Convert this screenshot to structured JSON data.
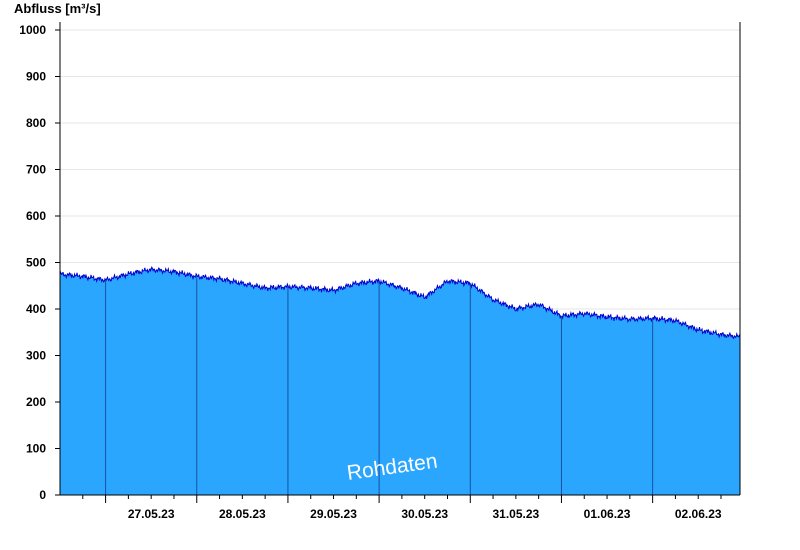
{
  "chart_data": {
    "type": "area",
    "title": "",
    "ylabel": "Abfluss [m³/s]",
    "xlabel": "",
    "ylim": [
      0,
      1000
    ],
    "xlim": [
      "2023-05-26 12:00",
      "2023-06-02 23:00"
    ],
    "yticks": [
      0,
      100,
      200,
      300,
      400,
      500,
      600,
      700,
      800,
      900,
      1000
    ],
    "xtick_labels": [
      "27.05.23",
      "28.05.23",
      "29.05.23",
      "30.05.23",
      "31.05.23",
      "01.06.23",
      "02.06.23"
    ],
    "grid": true,
    "watermark": "Rohdaten",
    "fill_color": "#2aa6ff",
    "line_color": "#0000cc",
    "series": [
      {
        "x": [
          "2023-05-26 12:00",
          "2023-05-26 18:00",
          "2023-05-27 00:00",
          "2023-05-27 06:00",
          "2023-05-27 12:00",
          "2023-05-27 18:00",
          "2023-05-28 00:00",
          "2023-05-28 06:00",
          "2023-05-28 12:00",
          "2023-05-28 18:00",
          "2023-05-29 00:00",
          "2023-05-29 06:00",
          "2023-05-29 12:00",
          "2023-05-29 18:00",
          "2023-05-30 00:00",
          "2023-05-30 06:00",
          "2023-05-30 12:00",
          "2023-05-30 18:00",
          "2023-05-31 00:00",
          "2023-05-31 06:00",
          "2023-05-31 12:00",
          "2023-05-31 18:00",
          "2023-06-01 00:00",
          "2023-06-01 06:00",
          "2023-06-01 12:00",
          "2023-06-01 18:00",
          "2023-06-02 00:00",
          "2023-06-02 06:00",
          "2023-06-02 12:00",
          "2023-06-02 18:00",
          "2023-06-02 23:00"
        ],
        "values": [
          475,
          470,
          462,
          475,
          485,
          480,
          470,
          465,
          455,
          445,
          448,
          445,
          440,
          455,
          460,
          445,
          425,
          460,
          455,
          420,
          400,
          410,
          385,
          390,
          383,
          378,
          380,
          375,
          355,
          345,
          340
        ]
      }
    ]
  }
}
